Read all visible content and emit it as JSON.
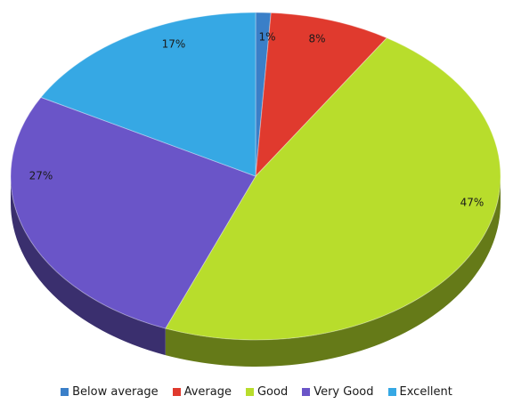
{
  "chart_data": {
    "type": "pie",
    "title": "",
    "three_d": true,
    "legend_position": "bottom",
    "slices": [
      {
        "name": "Below average",
        "value": 1,
        "label": "1%",
        "color": "#3a7fc8"
      },
      {
        "name": "Average",
        "value": 8,
        "label": "8%",
        "color": "#e03a2e"
      },
      {
        "name": "Good",
        "value": 47,
        "label": "47%",
        "color": "#b8dd2c"
      },
      {
        "name": "Very Good",
        "value": 27,
        "label": "27%",
        "color": "#6a55c8"
      },
      {
        "name": "Excellent",
        "value": 17,
        "label": "17%",
        "color": "#36a8e4"
      }
    ]
  }
}
